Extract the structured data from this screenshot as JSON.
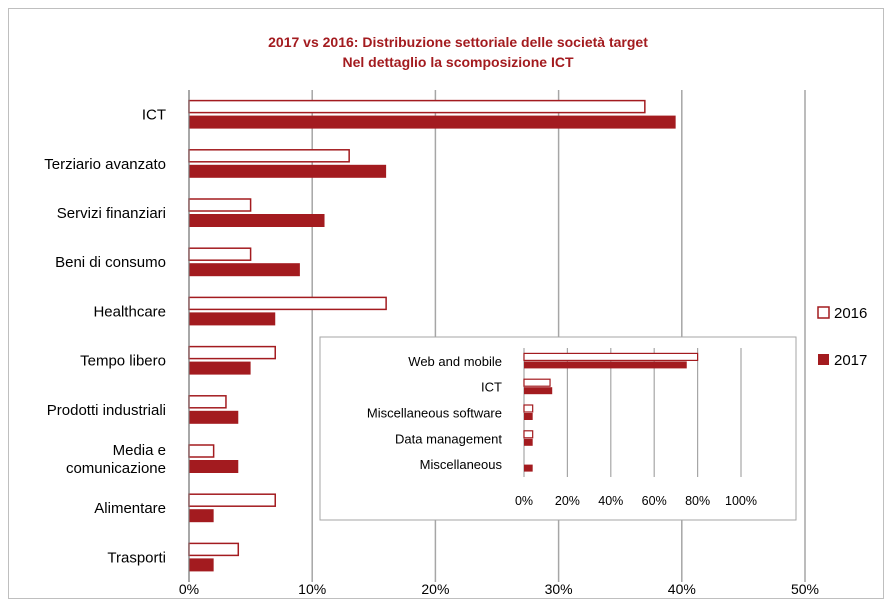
{
  "colors": {
    "accent": "#a31b1f",
    "grid": "#a6a6a6",
    "border": "#bfbfbf"
  },
  "chart_data": [
    {
      "type": "bar",
      "orientation": "horizontal",
      "title": "2017 vs 2016: Distribuzione settoriale delle società target",
      "subtitle": "Nel dettaglio la scomposizione ICT",
      "categories": [
        "ICT",
        "Terziario avanzato",
        "Servizi finanziari",
        "Beni di consumo",
        "Healthcare",
        "Tempo libero",
        "Prodotti industriali",
        "Media e comunicazione",
        "Alimentare",
        "Trasporti"
      ],
      "category_lines": [
        [
          "ICT"
        ],
        [
          "Terziario avanzato"
        ],
        [
          "Servizi finanziari"
        ],
        [
          "Beni di consumo"
        ],
        [
          "Healthcare"
        ],
        [
          "Tempo libero"
        ],
        [
          "Prodotti industriali"
        ],
        [
          "Media e",
          "comunicazione"
        ],
        [
          "Alimentare"
        ],
        [
          "Trasporti"
        ]
      ],
      "series": [
        {
          "name": "2016",
          "style": "outline",
          "values": [
            37,
            13,
            5,
            5,
            16,
            7,
            3,
            2,
            7,
            4
          ]
        },
        {
          "name": "2017",
          "style": "filled",
          "values": [
            39.5,
            16,
            11,
            9,
            7,
            5,
            4,
            4,
            2,
            2
          ]
        }
      ],
      "xlim": [
        0,
        50
      ],
      "xticks": [
        0,
        10,
        20,
        30,
        40,
        50
      ],
      "xtick_labels": [
        "0%",
        "10%",
        "20%",
        "30%",
        "40%",
        "50%"
      ],
      "grid": true,
      "legend": "right"
    },
    {
      "type": "bar",
      "orientation": "horizontal",
      "categories": [
        "Web and mobile",
        "ICT",
        "Miscellaneous software",
        "Data management",
        "Miscellaneous"
      ],
      "series": [
        {
          "name": "2016",
          "style": "outline",
          "values": [
            80,
            12,
            4,
            4,
            0
          ]
        },
        {
          "name": "2017",
          "style": "filled",
          "values": [
            75,
            13,
            4,
            4,
            4
          ]
        }
      ],
      "xlim": [
        0,
        100
      ],
      "xticks": [
        0,
        20,
        40,
        60,
        80,
        100
      ],
      "xtick_labels": [
        "0%",
        "20%",
        "40%",
        "60%",
        "80%",
        "100%"
      ],
      "grid": true
    }
  ]
}
